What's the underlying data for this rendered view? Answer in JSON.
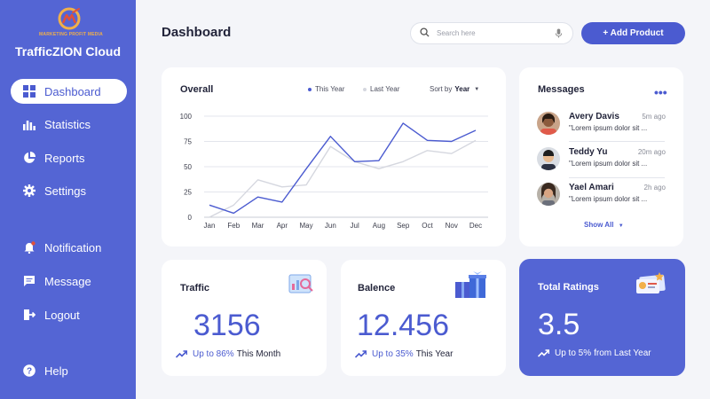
{
  "brand": {
    "logo_text": "MARKETING PROFIT MEDIA",
    "app_name": "TrafficZION Cloud",
    "accent": "#4b5bd0",
    "sidebar_bg": "#5465d4"
  },
  "sidebar": {
    "items": [
      {
        "label": "Dashboard",
        "icon": "dashboard-icon",
        "active": true
      },
      {
        "label": "Statistics",
        "icon": "bar-chart-icon"
      },
      {
        "label": "Reports",
        "icon": "pie-chart-icon"
      },
      {
        "label": "Settings",
        "icon": "gear-icon"
      },
      {
        "label": "Notification",
        "icon": "bell-icon"
      },
      {
        "label": "Message",
        "icon": "chat-icon"
      },
      {
        "label": "Logout",
        "icon": "logout-icon"
      },
      {
        "label": "Help",
        "icon": "help-icon"
      }
    ]
  },
  "header": {
    "title": "Dashboard",
    "search_placeholder": "Search here",
    "add_button": "+ Add Product"
  },
  "overall": {
    "title": "Overall",
    "legend_this_year": "This Year",
    "legend_last_year": "Last Year",
    "sort_prefix": "Sort by",
    "sort_value": "Year",
    "this_year_color": "#4b5bd0",
    "last_year_color": "#d5d7df"
  },
  "chart_data": {
    "type": "line",
    "title": "Overall",
    "categories": [
      "Jan",
      "Feb",
      "Mar",
      "Apr",
      "May",
      "Jun",
      "Jul",
      "Aug",
      "Sep",
      "Oct",
      "Nov",
      "Dec"
    ],
    "yticks": [
      "0",
      "25",
      "50",
      "75",
      "100"
    ],
    "ylim": [
      0,
      100
    ],
    "grid": true,
    "legend_position": "top-right",
    "series": [
      {
        "name": "This Year",
        "values": [
          12,
          4,
          20,
          15,
          48,
          80,
          55,
          56,
          93,
          76,
          75,
          86
        ]
      },
      {
        "name": "Last Year",
        "values": [
          0,
          12,
          37,
          30,
          32,
          70,
          55,
          48,
          55,
          66,
          63,
          76
        ]
      }
    ]
  },
  "messages": {
    "title": "Messages",
    "items": [
      {
        "name": "Avery Davis",
        "time": "5m ago",
        "text": "\"Lorem ipsum dolor sit ..."
      },
      {
        "name": "Teddy Yu",
        "time": "20m ago",
        "text": "\"Lorem ipsum dolor sit ..."
      },
      {
        "name": "Yael Amari",
        "time": "2h ago",
        "text": "\"Lorem ipsum dolor sit ..."
      }
    ],
    "show_all": "Show All"
  },
  "stats": [
    {
      "label": "Traffic",
      "value": "3156",
      "pct": "Up to 86%",
      "suffix": "This Month",
      "icon": "traffic-analytics-icon"
    },
    {
      "label": "Balence",
      "value": "12.456",
      "pct": "Up to 35%",
      "suffix": "This Year",
      "icon": "gift-boxes-icon"
    },
    {
      "label": "Total Ratings",
      "value": "3.5",
      "pct": "Up to 5%",
      "suffix": "from Last Year",
      "icon": "rating-card-icon"
    }
  ]
}
